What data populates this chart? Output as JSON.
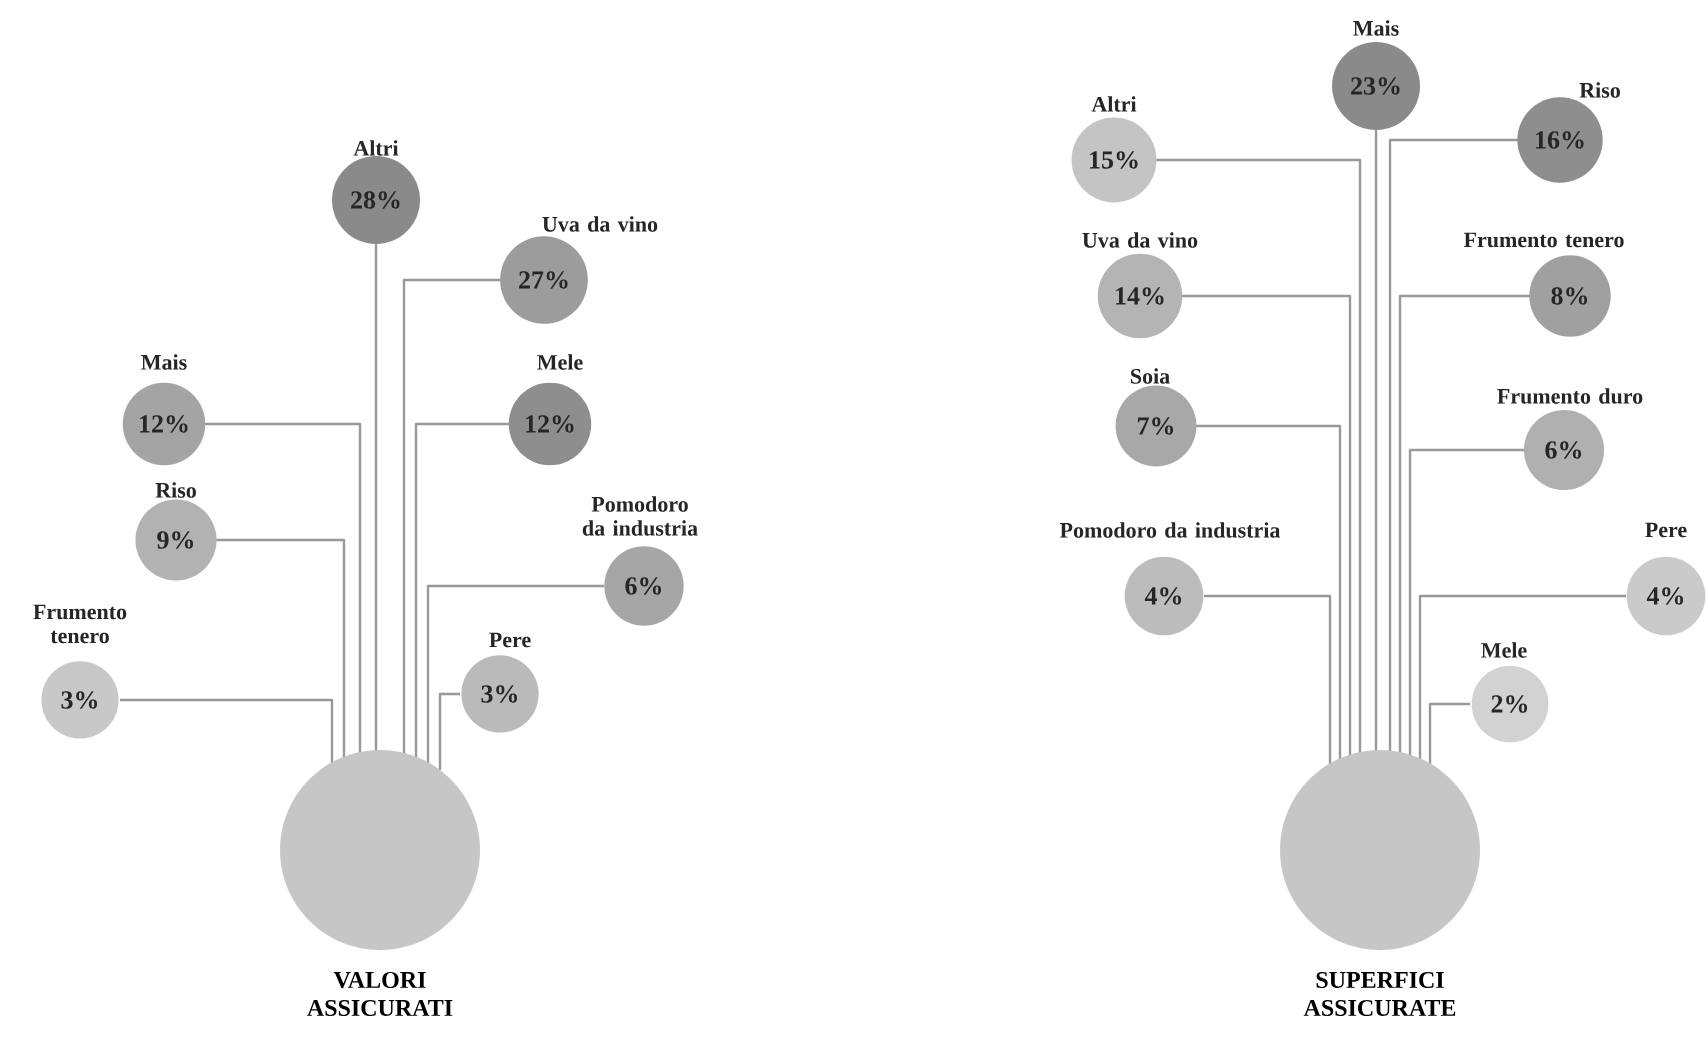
{
  "chart_data": [
    {
      "type": "other",
      "title": "VALORI ASSICURATI",
      "categories": [
        "Altri",
        "Uva da vino",
        "Mais",
        "Mele",
        "Riso",
        "Pomodoro da industria",
        "Frumento tenero",
        "Pere"
      ],
      "values": [
        28,
        27,
        12,
        12,
        9,
        6,
        3,
        3
      ],
      "value_labels": [
        "28%",
        "27%",
        "12%",
        "12%",
        "9%",
        "6%",
        "3%",
        "3%"
      ],
      "colors": [
        "#8a8a8a",
        "#9c9c9c",
        "#a4a4a4",
        "#8e8e8e",
        "#b2b2b2",
        "#a6a6a6",
        "#c8c8c8",
        "#bababa"
      ]
    },
    {
      "type": "other",
      "title": "SUPERFICI ASSICURATE",
      "categories": [
        "Mais",
        "Altri",
        "Riso",
        "Uva da vino",
        "Frumento tenero",
        "Soia",
        "Frumento duro",
        "Pomodoro da industria",
        "Pere",
        "Mele"
      ],
      "values": [
        23,
        15,
        16,
        14,
        8,
        7,
        6,
        4,
        4,
        2
      ],
      "value_labels": [
        "23%",
        "15%",
        "16%",
        "14%",
        "8%",
        "7%",
        "6%",
        "4%",
        "4%",
        "2%"
      ],
      "colors": [
        "#8a8a8a",
        "#c4c4c4",
        "#8e8e8e",
        "#b4b4b4",
        "#a0a0a0",
        "#a8a8a8",
        "#b0b0b0",
        "#bcbcbc",
        "#cacaca",
        "#d2d2d2"
      ]
    }
  ]
}
